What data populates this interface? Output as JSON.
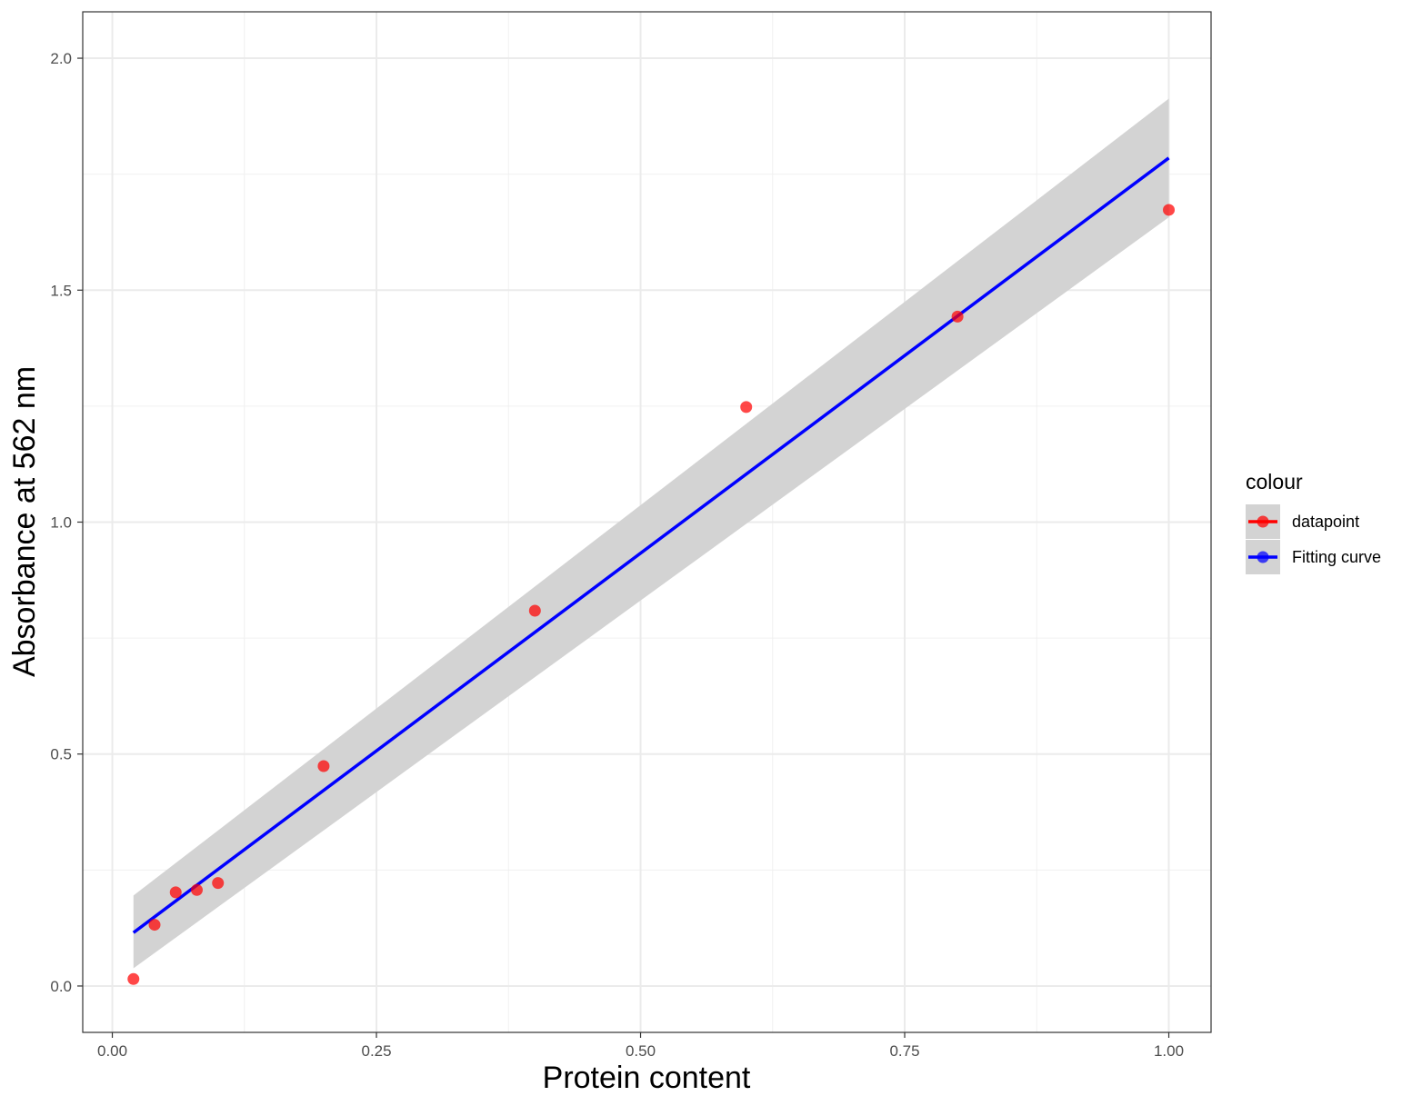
{
  "chart_data": {
    "type": "scatter",
    "xlabel": "Protein content",
    "ylabel": "Absorbance at 562 nm",
    "xlim": [
      -0.028,
      1.04
    ],
    "ylim": [
      -0.1,
      2.1
    ],
    "x_ticks": [
      0.0,
      0.25,
      0.5,
      0.75,
      1.0
    ],
    "x_tick_labels": [
      "0.00",
      "0.25",
      "0.50",
      "0.75",
      "1.00"
    ],
    "y_ticks": [
      0.0,
      0.5,
      1.0,
      1.5,
      2.0
    ],
    "y_tick_labels": [
      "0.0",
      "0.5",
      "1.0",
      "1.5",
      "2.0"
    ],
    "grid": true,
    "legend": {
      "title": "colour",
      "position": "right",
      "entries": [
        {
          "label": "datapoint",
          "color": "#ff0000"
        },
        {
          "label": "Fitting curve",
          "color": "#0000ff"
        }
      ]
    },
    "series": [
      {
        "name": "datapoint",
        "kind": "points",
        "color": "#ff0000",
        "x": [
          0.02,
          0.04,
          0.06,
          0.08,
          0.1,
          0.2,
          0.4,
          0.6,
          0.8,
          1.0
        ],
        "y": [
          0.015,
          0.132,
          0.202,
          0.207,
          0.222,
          0.474,
          0.809,
          1.248,
          1.443,
          1.673
        ]
      },
      {
        "name": "Fitting curve",
        "kind": "line",
        "color": "#0000ff",
        "x": [
          0.02,
          1.0
        ],
        "y": [
          0.115,
          1.785
        ]
      }
    ],
    "confidence_band": {
      "color": "#d3d3d3",
      "x": [
        0.02,
        1.0
      ],
      "lower": [
        0.038,
        1.657
      ],
      "upper": [
        0.195,
        1.913
      ]
    }
  }
}
